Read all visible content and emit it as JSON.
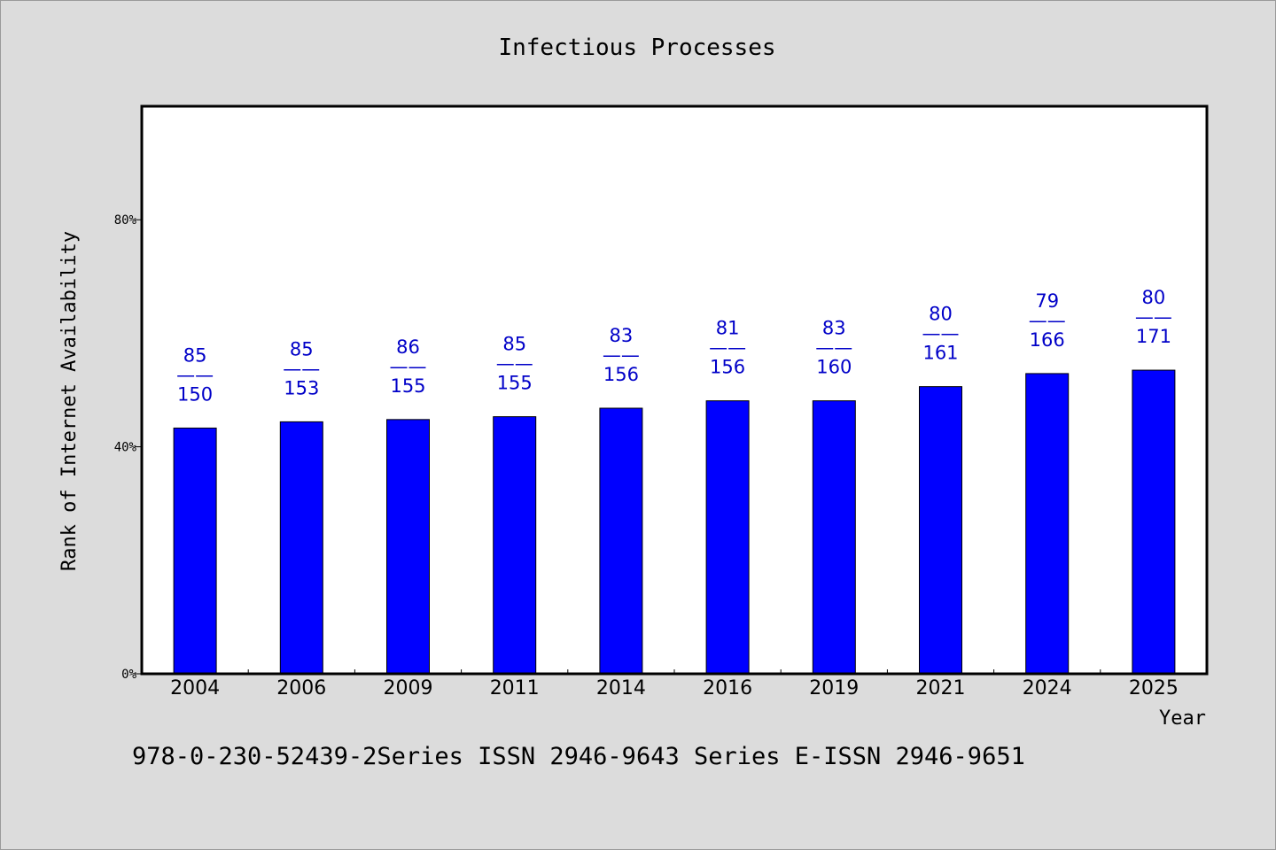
{
  "chart_data": {
    "type": "bar",
    "title": "Infectious Processes",
    "xlabel": "Year",
    "ylabel": "Rank of Internet Availability",
    "categories": [
      "2004",
      "2006",
      "2009",
      "2011",
      "2014",
      "2016",
      "2019",
      "2021",
      "2024",
      "2025"
    ],
    "values": [
      0.433,
      0.444,
      0.448,
      0.453,
      0.468,
      0.481,
      0.481,
      0.506,
      0.529,
      0.535
    ],
    "value_unit": "fraction",
    "ylim": [
      0,
      1
    ],
    "yticks": [
      0,
      0.4,
      0.8
    ],
    "ytick_labels": [
      "0%",
      "40%",
      "80%"
    ],
    "data_labels": [
      {
        "top": "85",
        "sep": "——",
        "bottom": "150"
      },
      {
        "top": "85",
        "sep": "——",
        "bottom": "153"
      },
      {
        "top": "86",
        "sep": "——",
        "bottom": "155"
      },
      {
        "top": "85",
        "sep": "——",
        "bottom": "155"
      },
      {
        "top": "83",
        "sep": "——",
        "bottom": "156"
      },
      {
        "top": "81",
        "sep": "——",
        "bottom": "156"
      },
      {
        "top": "83",
        "sep": "——",
        "bottom": "160"
      },
      {
        "top": "80",
        "sep": "——",
        "bottom": "161"
      },
      {
        "top": "79",
        "sep": "——",
        "bottom": "166"
      },
      {
        "top": "80",
        "sep": "——",
        "bottom": "171"
      }
    ],
    "bar_color": "#0000ff",
    "label_color": "#0000c8",
    "grid": false,
    "legend": "none"
  },
  "footnote": "978-0-230-52439-2Series ISSN 2946-9643 Series E-ISSN 2946-9651",
  "colors": {
    "background": "#dcdcdc",
    "plot_background": "#ffffff",
    "bar": "#0000ff",
    "data_label": "#0000c8"
  }
}
